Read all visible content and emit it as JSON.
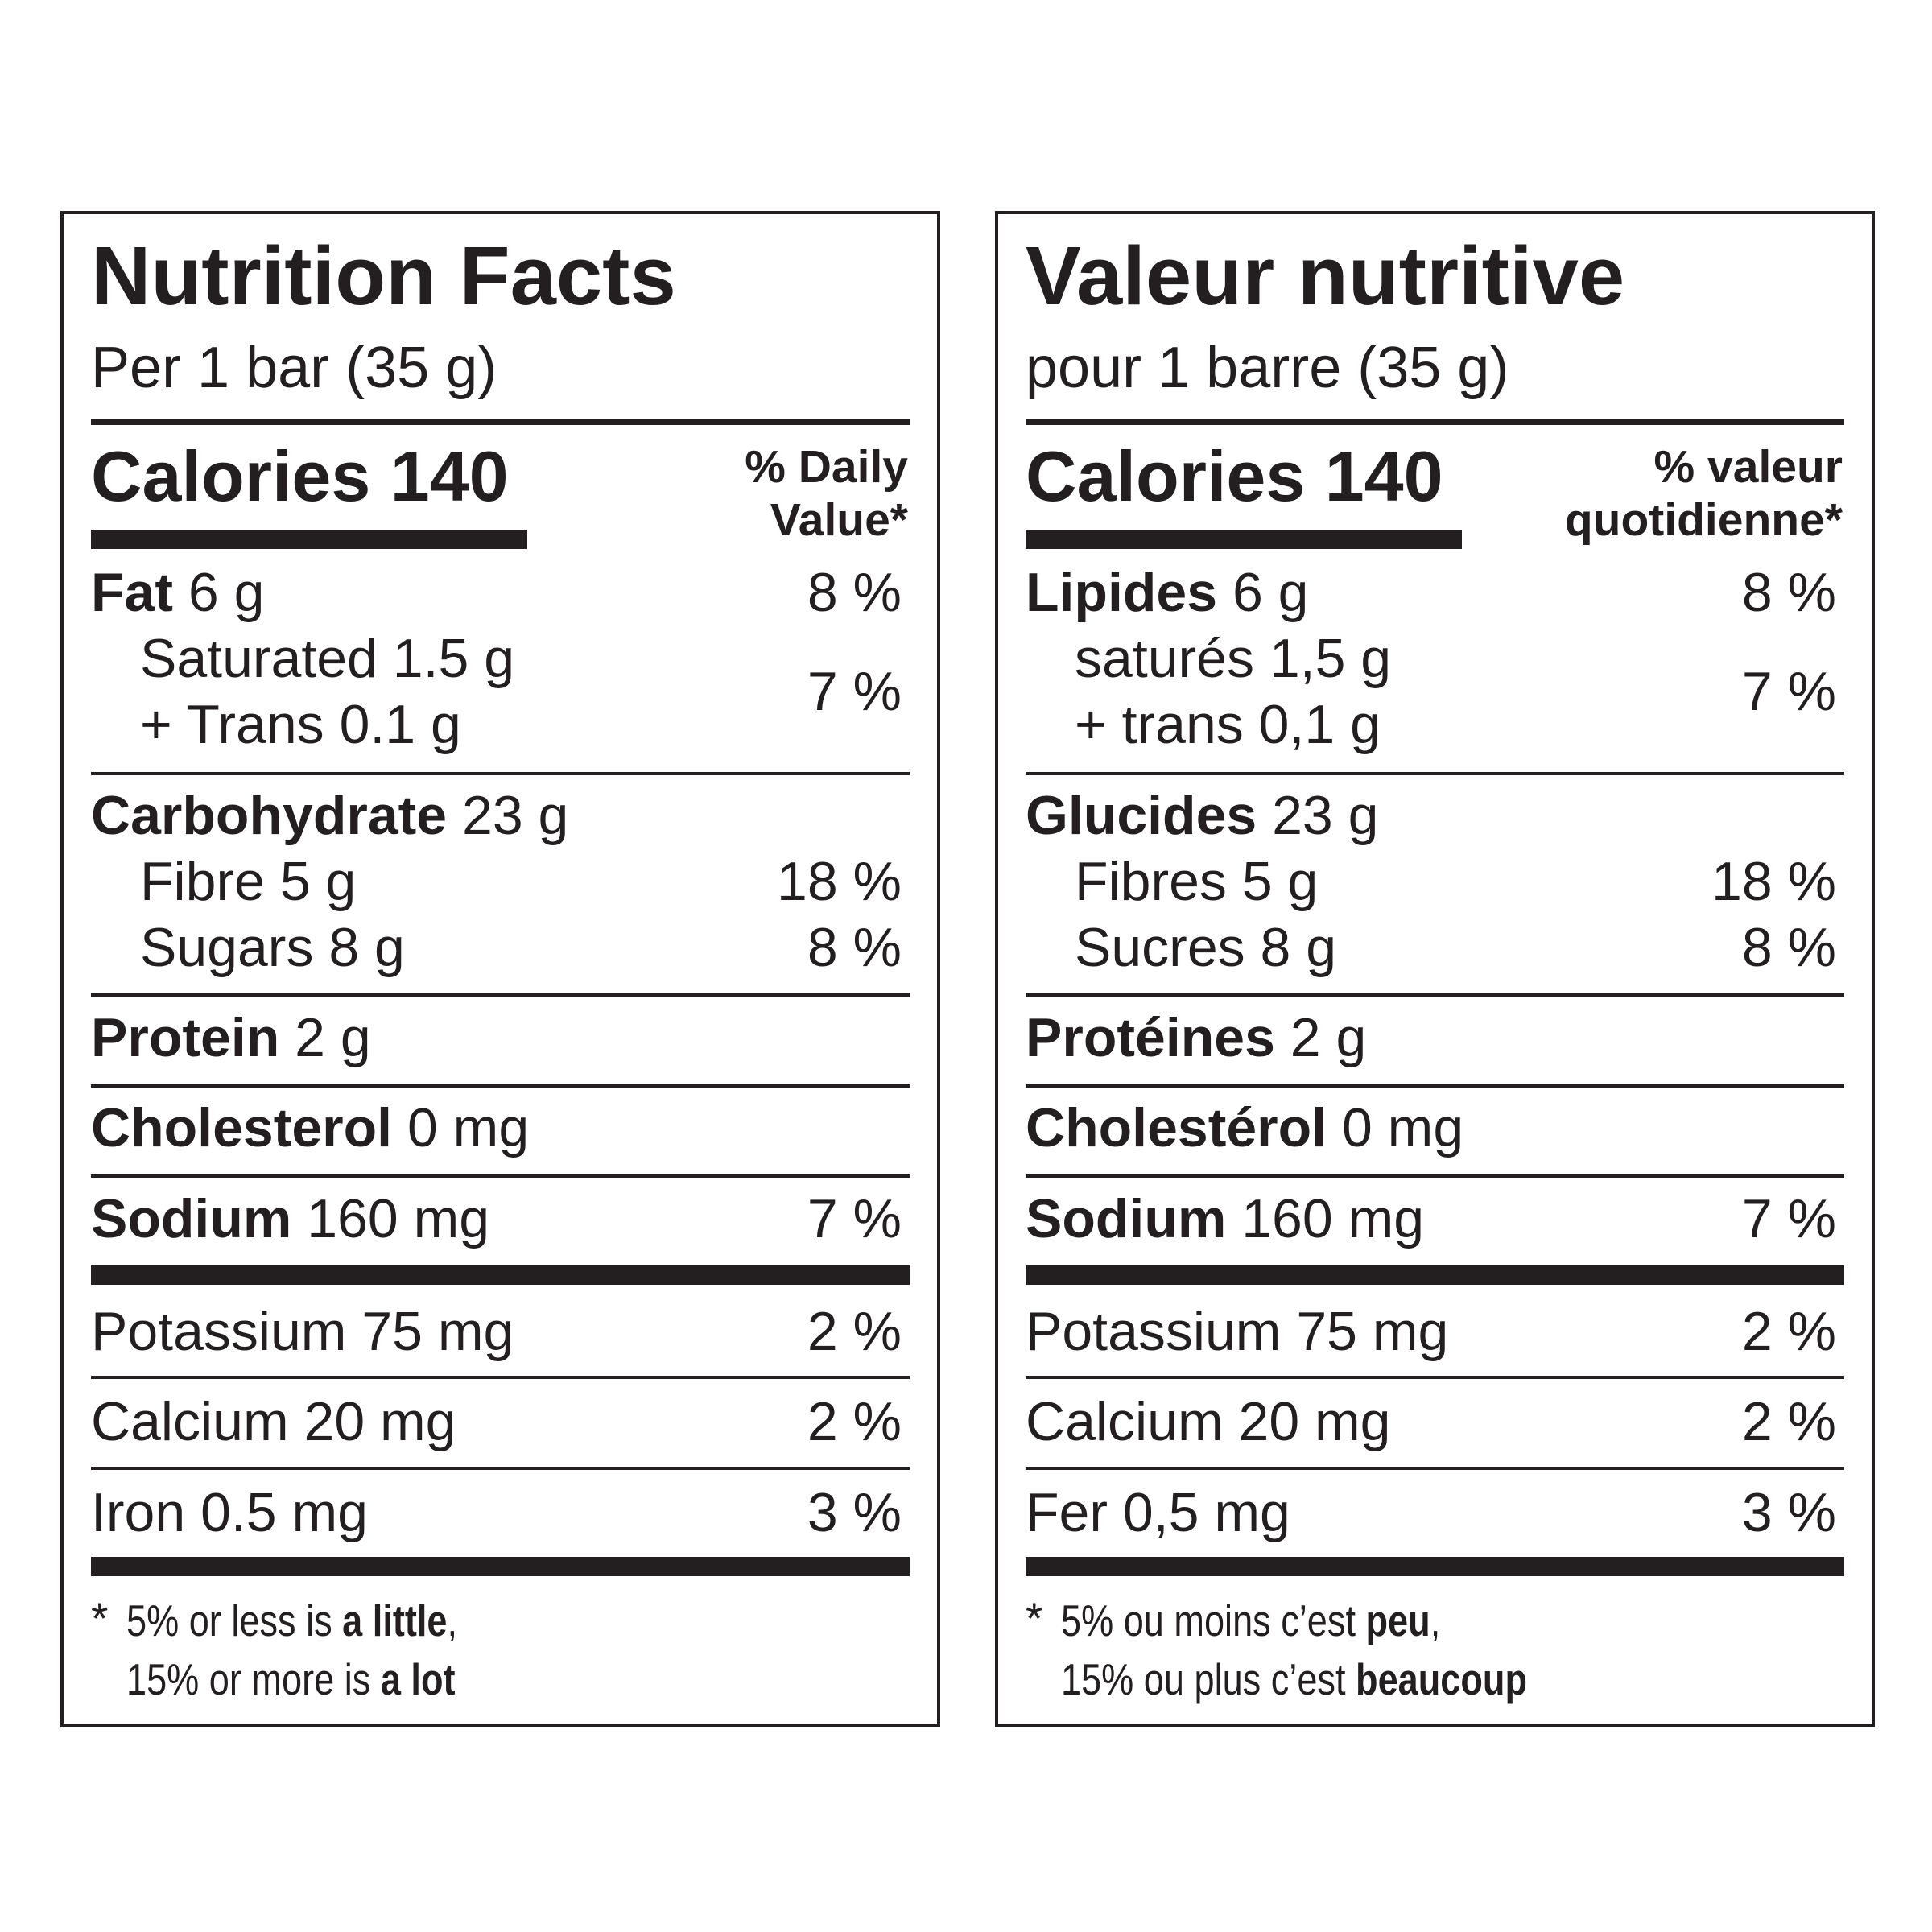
{
  "english": {
    "title": "Nutrition Facts",
    "serving": "Per 1 bar (35 g)",
    "calories": "Calories 140",
    "daily_value_line1": "% Daily",
    "daily_value_line2": "Value*",
    "fat_label": "Fat",
    "fat_amount": " 6 g",
    "fat_pct": "8 %",
    "saturated": "Saturated 1.5 g",
    "trans": "+ Trans 0.1 g",
    "sat_trans_pct": "7 %",
    "carb_label": "Carbohydrate",
    "carb_amount": " 23 g",
    "fibre": "Fibre 5 g",
    "fibre_pct": "18 %",
    "sugars": "Sugars 8 g",
    "sugars_pct": "8 %",
    "protein_label": "Protein",
    "protein_amount": " 2 g",
    "chol_label": "Cholesterol",
    "chol_amount": " 0 mg",
    "sodium_label": "Sodium",
    "sodium_amount": " 160 mg",
    "sodium_pct": "7 %",
    "potassium": "Potassium 75 mg",
    "potassium_pct": "2 %",
    "calcium": "Calcium 20 mg",
    "calcium_pct": "2 %",
    "iron": "Iron 0.5 mg",
    "iron_pct": "3 %",
    "footnote_star": "*",
    "footnote1_a": "5% or less is ",
    "footnote1_b": "a little",
    "footnote1_c": ",",
    "footnote2_a": "15% or more is ",
    "footnote2_b": "a lot"
  },
  "french": {
    "title": "Valeur nutritive",
    "serving": "pour 1 barre (35 g)",
    "calories": "Calories 140",
    "daily_value_line1": "% valeur",
    "daily_value_line2": "quotidienne*",
    "fat_label": "Lipides",
    "fat_amount": " 6 g",
    "fat_pct": "8 %",
    "saturated": "saturés 1,5 g",
    "trans": "+ trans 0,1 g",
    "sat_trans_pct": "7 %",
    "carb_label": "Glucides",
    "carb_amount": " 23 g",
    "fibre": "Fibres 5 g",
    "fibre_pct": "18 %",
    "sugars": "Sucres 8 g",
    "sugars_pct": "8 %",
    "protein_label": "Protéines",
    "protein_amount": " 2 g",
    "chol_label": "Cholestérol",
    "chol_amount": " 0 mg",
    "sodium_label": "Sodium",
    "sodium_amount": " 160 mg",
    "sodium_pct": "7 %",
    "potassium": "Potassium 75 mg",
    "potassium_pct": "2 %",
    "calcium": "Calcium 20 mg",
    "calcium_pct": "2 %",
    "iron": "Fer 0,5 mg",
    "iron_pct": "3 %",
    "footnote_star": "*",
    "footnote1_a": "5% ou moins c’est ",
    "footnote1_b": "peu",
    "footnote1_c": ",",
    "footnote2_a": "15% ou plus c’est ",
    "footnote2_b": "beaucoup"
  }
}
